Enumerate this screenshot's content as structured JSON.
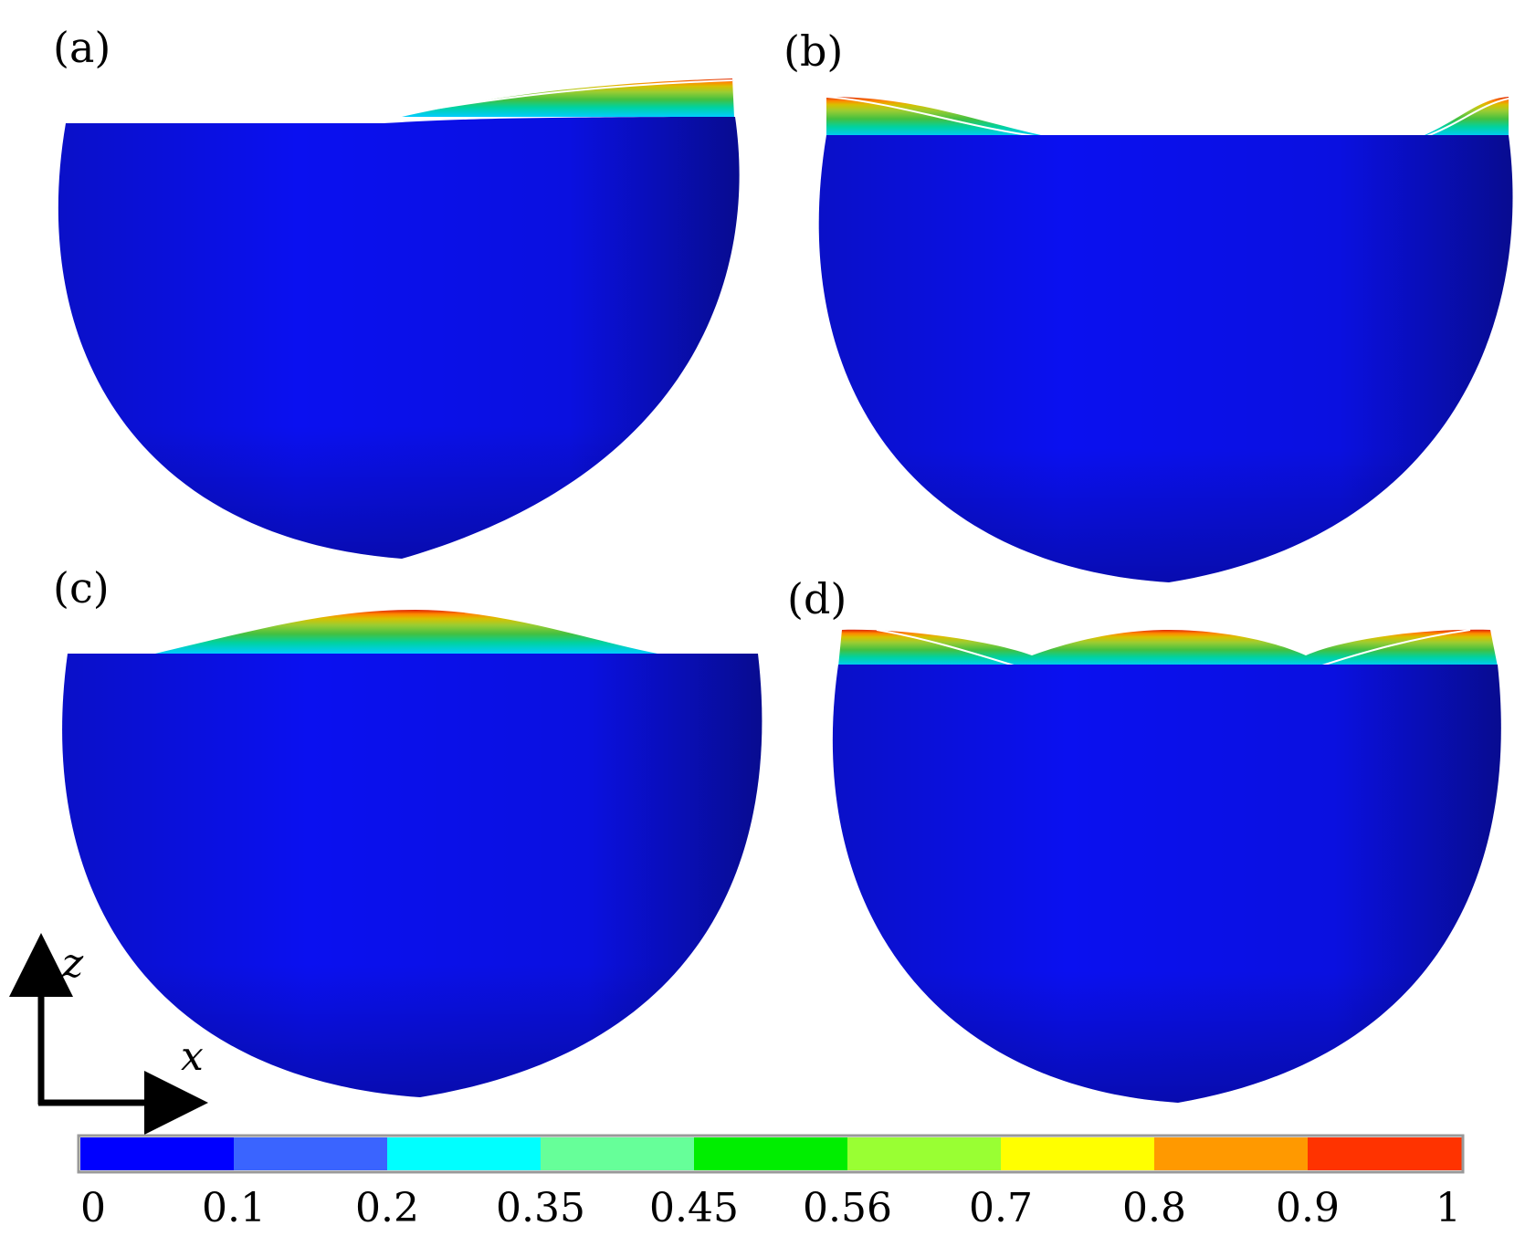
{
  "panels": [
    {
      "label": "(a)"
    },
    {
      "label": "(b)"
    },
    {
      "label": "(c)"
    },
    {
      "label": "(d)"
    }
  ],
  "axes": {
    "vertical": "z",
    "horizontal": "x"
  },
  "colorbar": {
    "colors": [
      "#0000ff",
      "#3a64ff",
      "#00ffff",
      "#66ff99",
      "#00ee00",
      "#99ff33",
      "#ffff00",
      "#ff9900",
      "#ff3300"
    ],
    "tick_labels": [
      "0",
      "0.1",
      "0.2",
      "0.35",
      "0.45",
      "0.56",
      "0.7",
      "0.8",
      "0.9",
      "1"
    ]
  },
  "colors": {
    "body": "#0a10e8",
    "edge": "#060a6a",
    "background": "#ffffff"
  }
}
